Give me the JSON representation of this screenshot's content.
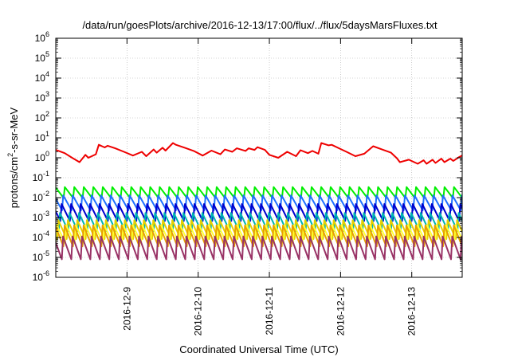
{
  "chart_data": {
    "type": "line",
    "title": "/data/run/goesPlots/archive/2016-12-13/17:00/flux/../flux/5daysMarsFluxes.txt",
    "xlabel": "Coordinated Universal Time (UTC)",
    "ylabel": {
      "pre": "protons/cm",
      "sup": "2",
      "post": "-s-sr-MeV"
    },
    "y_scale": "log",
    "ylim": [
      1e-06,
      1000000.0
    ],
    "y_ticks": [
      {
        "exp": -6,
        "base": "10",
        "sup": "-6"
      },
      {
        "exp": -5,
        "base": "10",
        "sup": "-5"
      },
      {
        "exp": -4,
        "base": "10",
        "sup": "-4"
      },
      {
        "exp": -3,
        "base": "10",
        "sup": "-3"
      },
      {
        "exp": -2,
        "base": "10",
        "sup": "-2"
      },
      {
        "exp": -1,
        "base": "10",
        "sup": "-1"
      },
      {
        "exp": 0,
        "base": "10",
        "sup": "0"
      },
      {
        "exp": 1,
        "base": "10",
        "sup": "1"
      },
      {
        "exp": 2,
        "base": "10",
        "sup": "2"
      },
      {
        "exp": 3,
        "base": "10",
        "sup": "3"
      },
      {
        "exp": 4,
        "base": "10",
        "sup": "4"
      },
      {
        "exp": 5,
        "base": "10",
        "sup": "5"
      },
      {
        "exp": 6,
        "base": "10",
        "sup": "6"
      }
    ],
    "xlim": [
      "2016-12-08",
      "2016-12-13T17:00"
    ],
    "x_ticks": [
      {
        "value": "2016-12-09",
        "label": "2016-12-9"
      },
      {
        "value": "2016-12-10",
        "label": "2016-12-10"
      },
      {
        "value": "2016-12-11",
        "label": "2016-12-11"
      },
      {
        "value": "2016-12-12",
        "label": "2016-12-12"
      },
      {
        "value": "2016-12-13",
        "label": "2016-12-13"
      }
    ],
    "grid": true,
    "series": [
      {
        "color": "#ee0000",
        "x": [
          "2016-12-08T00:00",
          "2016-12-08T03:00",
          "2016-12-08T05:30",
          "2016-12-08T08:00",
          "2016-12-08T10:00",
          "2016-12-08T11:00",
          "2016-12-08T13:30",
          "2016-12-08T14:30",
          "2016-12-08T16:30",
          "2016-12-08T17:30",
          "2016-12-08T20:00",
          "2016-12-08T23:00",
          "2016-12-09T02:00",
          "2016-12-09T05:00",
          "2016-12-09T06:30",
          "2016-12-09T09:00",
          "2016-12-09T10:00",
          "2016-12-09T12:00",
          "2016-12-09T13:00",
          "2016-12-09T15:30",
          "2016-12-09T16:30",
          "2016-12-09T19:30",
          "2016-12-09T22:30",
          "2016-12-10T01:30",
          "2016-12-10T04:30",
          "2016-12-10T07:30",
          "2016-12-10T09:00",
          "2016-12-10T11:30",
          "2016-12-10T13:00",
          "2016-12-10T16:00",
          "2016-12-10T17:00",
          "2016-12-10T19:00",
          "2016-12-10T20:00",
          "2016-12-10T22:30",
          "2016-12-11T00:00",
          "2016-12-11T03:00",
          "2016-12-11T06:00",
          "2016-12-11T09:00",
          "2016-12-11T10:30",
          "2016-12-11T13:00",
          "2016-12-11T14:30",
          "2016-12-11T16:30",
          "2016-12-11T17:30",
          "2016-12-11T20:00",
          "2016-12-11T21:00",
          "2016-12-11T23:30",
          "2016-12-12T02:00",
          "2016-12-12T05:00",
          "2016-12-12T08:00",
          "2016-12-12T11:00",
          "2016-12-12T14:00",
          "2016-12-12T17:00",
          "2016-12-12T19:00",
          "2016-12-12T20:00",
          "2016-12-12T23:00",
          "2016-12-13T02:00",
          "2016-12-13T04:00",
          "2016-12-13T05:00",
          "2016-12-13T07:00",
          "2016-12-13T08:00",
          "2016-12-13T10:00",
          "2016-12-13T11:00",
          "2016-12-13T13:00",
          "2016-12-13T14:00",
          "2016-12-13T16:00",
          "2016-12-13T17:00"
        ],
        "y": [
          2.5,
          1.7,
          1.0,
          0.6,
          1.4,
          1.0,
          1.5,
          4.5,
          3.3,
          4.0,
          3.0,
          2.0,
          1.3,
          2.0,
          1.2,
          2.6,
          1.8,
          3.2,
          2.3,
          5.5,
          4.5,
          3.2,
          2.2,
          1.3,
          2.3,
          1.5,
          2.6,
          2.0,
          3.0,
          2.2,
          3.0,
          2.5,
          3.4,
          2.5,
          1.4,
          1.0,
          2.0,
          1.2,
          2.4,
          1.7,
          2.2,
          1.6,
          5.5,
          4.2,
          4.5,
          3.0,
          2.0,
          1.2,
          1.6,
          3.8,
          2.6,
          1.8,
          0.95,
          0.6,
          0.8,
          0.5,
          0.75,
          0.5,
          0.8,
          0.55,
          0.9,
          0.6,
          0.9,
          0.7,
          1.1,
          1.3
        ]
      },
      {
        "color": "#00ee00",
        "base": 0.018,
        "amp": 0.55,
        "period_hours": 3.2
      },
      {
        "color": "#1e6fff",
        "base": 0.0055,
        "amp": 0.75,
        "period_hours": 3.2
      },
      {
        "color": "#0000cc",
        "base": 0.0018,
        "amp": 0.85,
        "period_hours": 3.2
      },
      {
        "color": "#00b4b4",
        "base": 0.0006,
        "amp": 0.9,
        "period_hours": 3.2
      },
      {
        "color": "#e6d000",
        "base": 0.00025,
        "amp": 0.95,
        "period_hours": 3.2
      },
      {
        "color": "#ffff33",
        "base": 0.00015,
        "amp": 0.9,
        "period_hours": 3.2
      },
      {
        "color": "#e8a000",
        "base": 0.00012,
        "amp": 1.05,
        "period_hours": 3.2
      },
      {
        "color": "#993366",
        "base": 3e-05,
        "amp": 1.15,
        "period_hours": 3.2
      }
    ]
  }
}
